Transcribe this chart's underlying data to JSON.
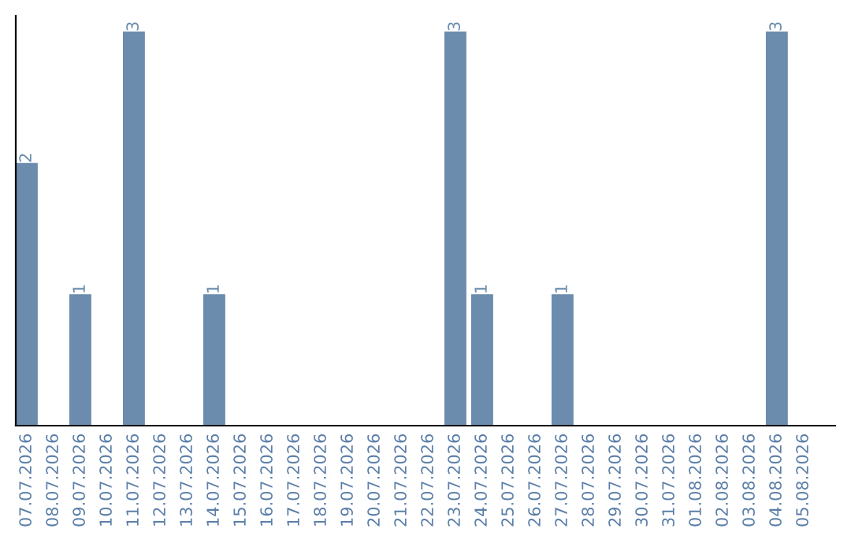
{
  "chart_data": {
    "type": "bar",
    "categories": [
      "07.07.2026",
      "08.07.2026",
      "09.07.2026",
      "10.07.2026",
      "11.07.2026",
      "12.07.2026",
      "13.07.2026",
      "14.07.2026",
      "15.07.2026",
      "16.07.2026",
      "17.07.2026",
      "18.07.2026",
      "19.07.2026",
      "20.07.2026",
      "21.07.2026",
      "22.07.2026",
      "23.07.2026",
      "24.07.2026",
      "25.07.2026",
      "26.07.2026",
      "27.07.2026",
      "28.07.2026",
      "29.07.2026",
      "30.07.2026",
      "31.07.2026",
      "01.08.2026",
      "02.08.2026",
      "03.08.2026",
      "04.08.2026",
      "05.08.2026"
    ],
    "values": [
      2,
      0,
      1,
      0,
      3,
      0,
      0,
      1,
      0,
      0,
      0,
      0,
      0,
      0,
      0,
      0,
      3,
      1,
      0,
      0,
      1,
      0,
      0,
      0,
      0,
      0,
      0,
      0,
      3,
      0
    ],
    "value_labels": [
      "2",
      null,
      "1",
      null,
      "3",
      null,
      null,
      "1",
      null,
      null,
      null,
      null,
      null,
      null,
      null,
      null,
      "3",
      "1",
      null,
      null,
      "1",
      null,
      null,
      null,
      null,
      null,
      null,
      null,
      "3",
      null
    ],
    "color": "#6b8cac",
    "grid": false,
    "legend": false
  }
}
